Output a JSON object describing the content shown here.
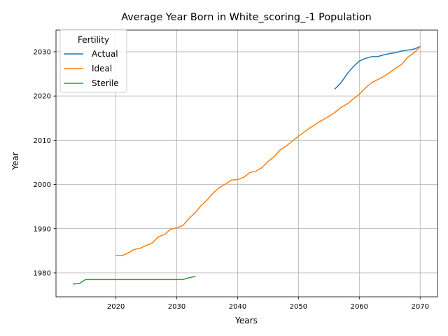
{
  "chart_data": {
    "type": "line",
    "title": "Average Year Born in White_scoring_-1 Population",
    "xlabel": "Years",
    "ylabel": "Year",
    "xlim": [
      2010.15,
      2072.85
    ],
    "ylim": [
      1974.6,
      2034.9
    ],
    "xticks": [
      2020,
      2030,
      2040,
      2050,
      2060,
      2070
    ],
    "yticks": [
      1980,
      1990,
      2000,
      2010,
      2020,
      2030
    ],
    "grid": true,
    "legend": {
      "title": "Fertility",
      "placement": "upper left"
    },
    "series": [
      {
        "name": "Actual",
        "color": "#1f77b4",
        "x": [
          2056,
          2057,
          2058,
          2059,
          2060,
          2061,
          2062,
          2063,
          2064,
          2065,
          2066,
          2067,
          2068,
          2069,
          2070
        ],
        "values": [
          2021.6,
          2023.0,
          2025.0,
          2026.6,
          2027.9,
          2028.5,
          2028.9,
          2028.9,
          2029.3,
          2029.6,
          2029.8,
          2030.2,
          2030.4,
          2030.6,
          2031.2
        ]
      },
      {
        "name": "Ideal",
        "color": "#ff7f0e",
        "x": [
          2020,
          2021,
          2022,
          2023,
          2024,
          2025,
          2026,
          2027,
          2028,
          2029,
          2030,
          2031,
          2032,
          2033,
          2034,
          2035,
          2036,
          2037,
          2038,
          2039,
          2040,
          2041,
          2042,
          2043,
          2044,
          2045,
          2046,
          2047,
          2048,
          2049,
          2050,
          2051,
          2052,
          2053,
          2054,
          2055,
          2056,
          2057,
          2058,
          2059,
          2060,
          2061,
          2062,
          2063,
          2064,
          2065,
          2066,
          2067,
          2068,
          2069,
          2070
        ],
        "values": [
          1983.9,
          1983.9,
          1984.5,
          1985.3,
          1985.6,
          1986.2,
          1986.8,
          1988.2,
          1988.7,
          1989.9,
          1990.2,
          1990.7,
          1992.3,
          1993.6,
          1995.2,
          1996.5,
          1998.1,
          1999.3,
          2000.1,
          2001.0,
          2001.1,
          2001.6,
          2002.7,
          2003.0,
          2003.8,
          2005.2,
          2006.3,
          2007.8,
          2008.7,
          2009.8,
          2010.9,
          2011.9,
          2012.9,
          2013.8,
          2014.6,
          2015.4,
          2016.3,
          2017.4,
          2018.2,
          2019.3,
          2020.4,
          2021.8,
          2023.0,
          2023.7,
          2024.4,
          2025.3,
          2026.3,
          2027.2,
          2028.8,
          2029.8,
          2031.2
        ]
      },
      {
        "name": "Sterile",
        "color": "#2ca02c",
        "x": [
          2013,
          2014,
          2015,
          2016,
          2017,
          2018,
          2019,
          2020,
          2021,
          2022,
          2023,
          2024,
          2025,
          2026,
          2027,
          2028,
          2029,
          2030,
          2031,
          2032,
          2033
        ],
        "values": [
          1977.5,
          1977.6,
          1978.5,
          1978.5,
          1978.5,
          1978.5,
          1978.5,
          1978.5,
          1978.5,
          1978.5,
          1978.5,
          1978.5,
          1978.5,
          1978.5,
          1978.5,
          1978.5,
          1978.5,
          1978.5,
          1978.5,
          1978.9,
          1979.2
        ]
      }
    ]
  }
}
